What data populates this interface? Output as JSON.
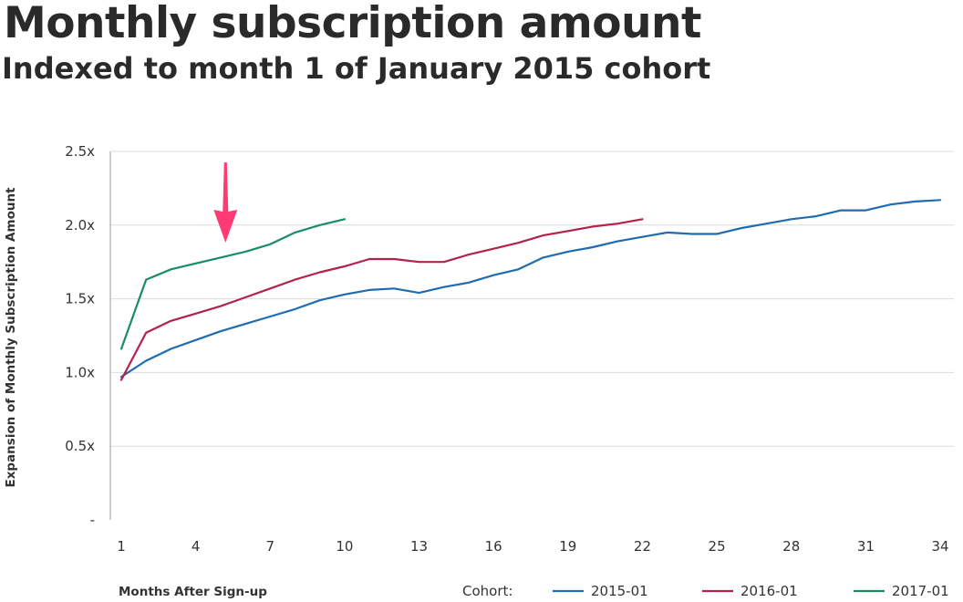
{
  "title": "Monthly subscription amount",
  "subtitle": "Indexed to month 1 of January 2015 cohort",
  "chart_data": {
    "type": "line",
    "xlabel": "Months After Sign-up",
    "ylabel": "Expansion of Monthly Subscription Amount",
    "xlim": [
      1,
      34
    ],
    "ylim": [
      0,
      2.5
    ],
    "x_ticks": [
      1,
      4,
      7,
      10,
      13,
      16,
      19,
      22,
      25,
      28,
      31,
      34
    ],
    "x_tick_labels": [
      "1",
      "4",
      "7",
      "10",
      "13",
      "16",
      "19",
      "22",
      "25",
      "28",
      "31",
      "34"
    ],
    "y_ticks": [
      0,
      0.5,
      1.0,
      1.5,
      2.0,
      2.5
    ],
    "y_tick_labels": [
      "-",
      "0.5x",
      "1.0x",
      "1.5x",
      "2.0x",
      "2.5x"
    ],
    "grid": "horizontal",
    "legend_title": "Cohort:",
    "legend_position": "bottom",
    "annotation": {
      "type": "arrow",
      "x": 5.2,
      "color": "#ff3a74"
    },
    "series": [
      {
        "name": "2015-01",
        "color": "#1f6cb0",
        "x": [
          1,
          2,
          3,
          4,
          5,
          6,
          7,
          8,
          9,
          10,
          11,
          12,
          13,
          14,
          15,
          16,
          17,
          18,
          19,
          20,
          21,
          22,
          23,
          24,
          25,
          26,
          27,
          28,
          29,
          30,
          31,
          32,
          33,
          34
        ],
        "values": [
          0.97,
          1.08,
          1.16,
          1.22,
          1.28,
          1.33,
          1.38,
          1.43,
          1.49,
          1.53,
          1.56,
          1.57,
          1.54,
          1.58,
          1.61,
          1.66,
          1.7,
          1.78,
          1.82,
          1.85,
          1.89,
          1.92,
          1.95,
          1.94,
          1.94,
          1.98,
          2.01,
          2.04,
          2.06,
          2.1,
          2.1,
          2.14,
          2.16,
          2.17
        ]
      },
      {
        "name": "2016-01",
        "color": "#b3224a",
        "x": [
          1,
          2,
          3,
          4,
          5,
          6,
          7,
          8,
          9,
          10,
          11,
          12,
          13,
          14,
          15,
          16,
          17,
          18,
          19,
          20,
          21,
          22
        ],
        "values": [
          0.95,
          1.27,
          1.35,
          1.4,
          1.45,
          1.51,
          1.57,
          1.63,
          1.68,
          1.72,
          1.77,
          1.77,
          1.75,
          1.75,
          1.8,
          1.84,
          1.88,
          1.93,
          1.96,
          1.99,
          2.01,
          2.04
        ]
      },
      {
        "name": "2017-01",
        "color": "#1b8a6b",
        "x": [
          1,
          2,
          3,
          4,
          5,
          6,
          7,
          8,
          9,
          10
        ],
        "values": [
          1.16,
          1.63,
          1.7,
          1.74,
          1.78,
          1.82,
          1.87,
          1.95,
          2.0,
          2.04
        ]
      }
    ]
  }
}
